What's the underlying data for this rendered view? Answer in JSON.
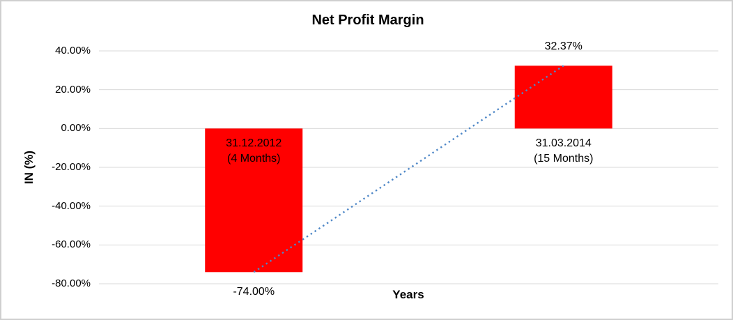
{
  "chart_data": {
    "type": "bar",
    "title": "Net Profit Margin",
    "xlabel": "Years",
    "ylabel": "IN (%)",
    "categories": [
      "31.12.2012 (4 Months)",
      "31.03.2014 (15 Months)"
    ],
    "category_label_lines": [
      [
        "31.12.2012",
        "(4 Months)"
      ],
      [
        "31.03.2014",
        "(15 Months)"
      ]
    ],
    "series": [
      {
        "name": "Net Profit Margin",
        "values": [
          -74.0,
          32.37
        ]
      }
    ],
    "data_labels": [
      "-74.00%",
      "32.37%"
    ],
    "ylim": [
      -80,
      40
    ],
    "yticks": [
      40,
      20,
      0,
      -20,
      -40,
      -60,
      -80
    ],
    "ytick_labels": [
      "40.00%",
      "20.00%",
      "0.00%",
      "-20.00%",
      "-40.00%",
      "-60.00%",
      "-80.00%"
    ],
    "grid": true,
    "legend": "none",
    "trendline": {
      "type": "linear",
      "style": "dotted"
    },
    "colors": {
      "bar": "#ff0000",
      "trendline": "#4e87c7",
      "gridline": "#d9d9d9",
      "text": "#000000",
      "border": "#cfcfcf",
      "background": "#ffffff"
    }
  }
}
